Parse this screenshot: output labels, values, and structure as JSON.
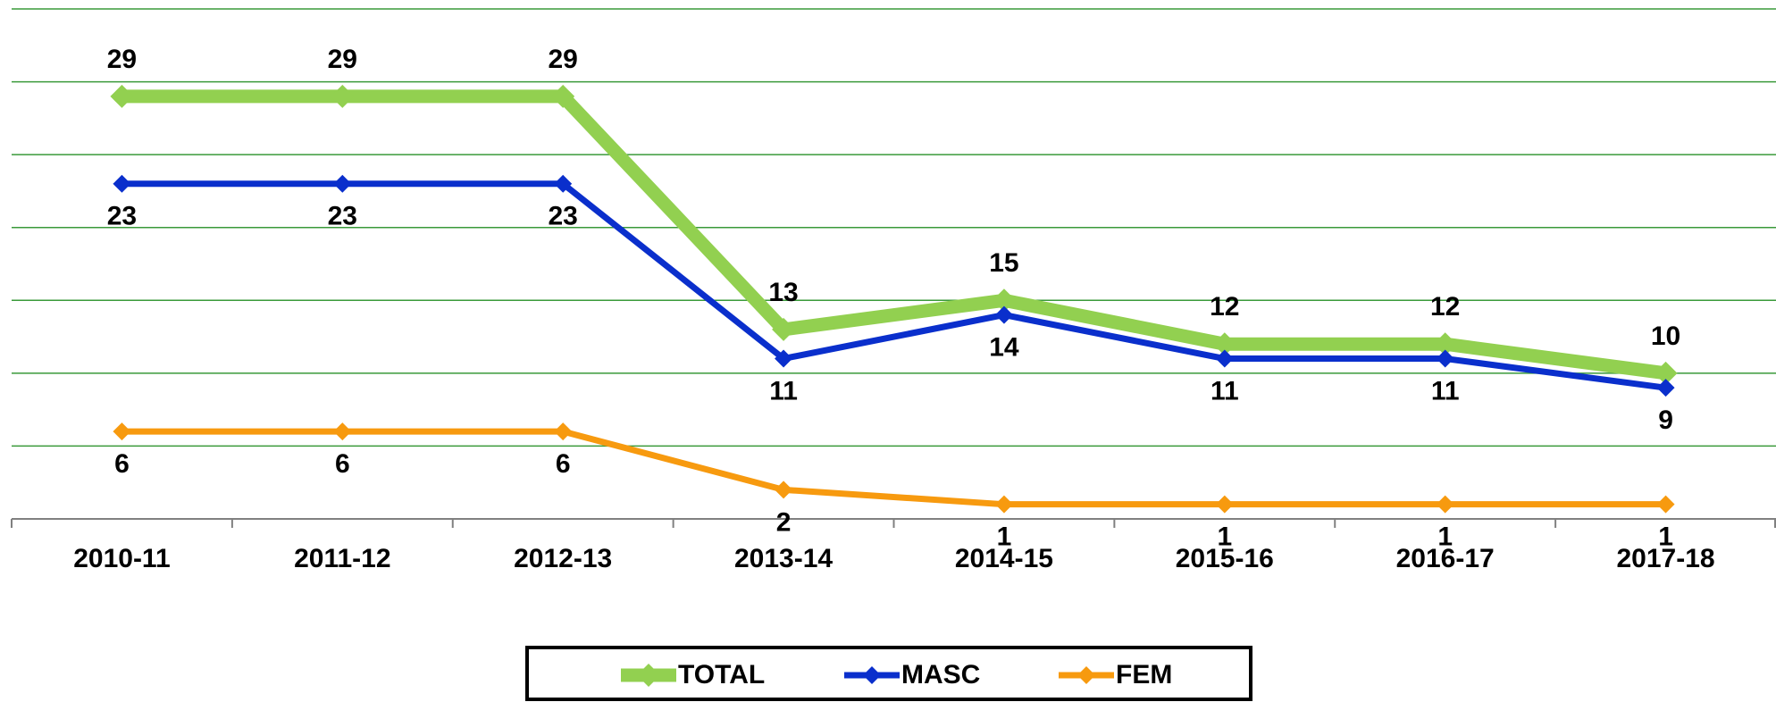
{
  "chart_data": {
    "type": "line",
    "categories": [
      "2010-11",
      "2011-12",
      "2012-13",
      "2013-14",
      "2014-15",
      "2015-16",
      "2016-17",
      "2017-18"
    ],
    "series": [
      {
        "name": "TOTAL",
        "color": "#92d050",
        "values": [
          29,
          29,
          29,
          13,
          15,
          12,
          12,
          10
        ]
      },
      {
        "name": "MASC",
        "color": "#0a2fcc",
        "values": [
          23,
          23,
          23,
          11,
          14,
          11,
          11,
          9
        ]
      },
      {
        "name": "FEM",
        "color": "#f79a0f",
        "values": [
          6,
          6,
          6,
          2,
          1,
          1,
          1,
          1
        ]
      }
    ],
    "ylim": [
      0,
      35
    ],
    "yticks": [
      0,
      5,
      10,
      15,
      20,
      25,
      30,
      35
    ],
    "grid": true,
    "legend": "bottom"
  }
}
